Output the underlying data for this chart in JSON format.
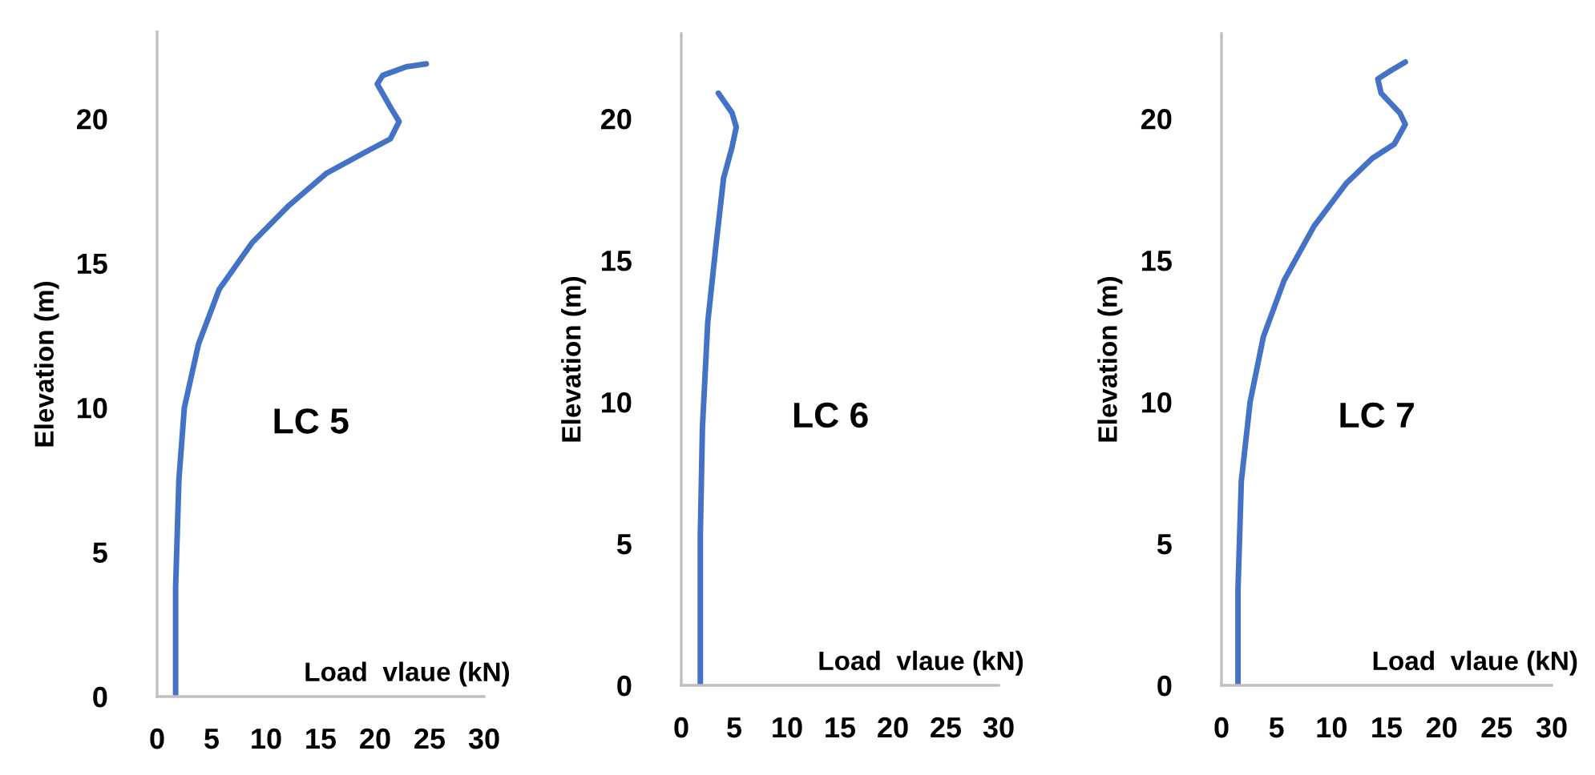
{
  "chart_data": [
    {
      "type": "line",
      "xlabel": "Load  vlaue (kN)",
      "ylabel": "Elevation (m)",
      "annotations": [
        "LC 5"
      ],
      "xlim": [
        0,
        30
      ],
      "xticks": [
        0,
        5,
        10,
        15,
        20,
        25,
        30
      ],
      "ylim": [
        0,
        23
      ],
      "yticks": [
        0,
        5,
        10,
        15,
        20
      ],
      "grid": false,
      "legend": false,
      "marker": "none",
      "line_style": "solid",
      "series": [
        {
          "color": "#4472c4",
          "x": [
            1.7,
            1.7,
            2.0,
            2.5,
            3.8,
            5.7,
            8.7,
            12.1,
            15.5,
            18.9,
            21.4,
            22.2,
            21.4,
            20.2,
            20.7,
            22.9,
            24.7
          ],
          "values": [
            0,
            3.8,
            7.5,
            10,
            12.2,
            14.1,
            15.7,
            17.0,
            18.1,
            18.8,
            19.3,
            19.9,
            20.4,
            21.2,
            21.5,
            21.8,
            21.9
          ]
        }
      ]
    },
    {
      "type": "line",
      "xlabel": "Load  vlaue (kN)",
      "ylabel": "Elevation (m)",
      "annotations": [
        "LC 6"
      ],
      "xlim": [
        0,
        30
      ],
      "xticks": [
        0,
        5,
        10,
        15,
        20,
        25,
        30
      ],
      "ylim": [
        0,
        23
      ],
      "yticks": [
        0,
        5,
        10,
        15,
        20
      ],
      "grid": false,
      "legend": false,
      "marker": "none",
      "line_style": "solid",
      "series": [
        {
          "color": "#4472c4",
          "x": [
            1.8,
            1.8,
            2.0,
            2.5,
            3.3,
            4.0,
            4.8,
            5.2,
            4.8,
            3.5
          ],
          "values": [
            0,
            5.3,
            9.1,
            12.8,
            15.6,
            17.9,
            19.0,
            19.7,
            20.2,
            20.9
          ]
        }
      ]
    },
    {
      "type": "line",
      "xlabel": "Load  vlaue (kN)",
      "ylabel": "Elevation (m)",
      "annotations": [
        "LC 7"
      ],
      "xlim": [
        0,
        30
      ],
      "xticks": [
        0,
        5,
        10,
        15,
        20,
        25,
        30
      ],
      "ylim": [
        0,
        23
      ],
      "yticks": [
        0,
        5,
        10,
        15,
        20
      ],
      "grid": false,
      "legend": false,
      "marker": "none",
      "line_style": "solid",
      "series": [
        {
          "color": "#4472c4",
          "x": [
            1.5,
            1.5,
            1.8,
            2.6,
            3.8,
            5.7,
            8.4,
            11.3,
            13.7,
            15.7,
            16.7,
            16.2,
            14.5,
            14.2,
            15.4,
            16.7
          ],
          "values": [
            0,
            3.4,
            7.2,
            10,
            12.3,
            14.3,
            16.2,
            17.7,
            18.6,
            19.1,
            19.8,
            20.2,
            20.9,
            21.4,
            21.7,
            22.0
          ]
        }
      ]
    }
  ]
}
